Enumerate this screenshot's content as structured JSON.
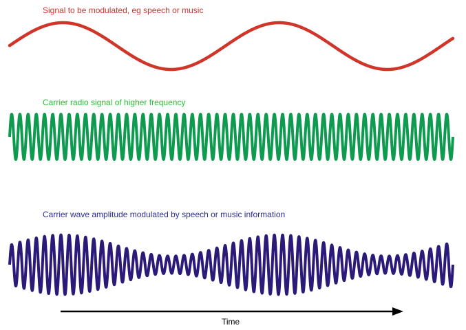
{
  "labels": {
    "signal": "Signal to be modulated, eg speech or music",
    "carrier": "Carrier radio signal of higher frequency",
    "modulated": "Carrier wave amplitude modulated by speech or music information",
    "time_axis": "Time"
  },
  "colors": {
    "signal": "#d0352a",
    "carrier": "#0e9a4f",
    "modulated": "#2b1a78",
    "signal_label": "#d0352a",
    "carrier_label": "#22c233",
    "modulated_label": "#2b2b9a",
    "axis": "#000000"
  },
  "waves": {
    "signal_cycles": 2.05,
    "carrier_cycles": 54,
    "modulation_depth": 0.55
  }
}
